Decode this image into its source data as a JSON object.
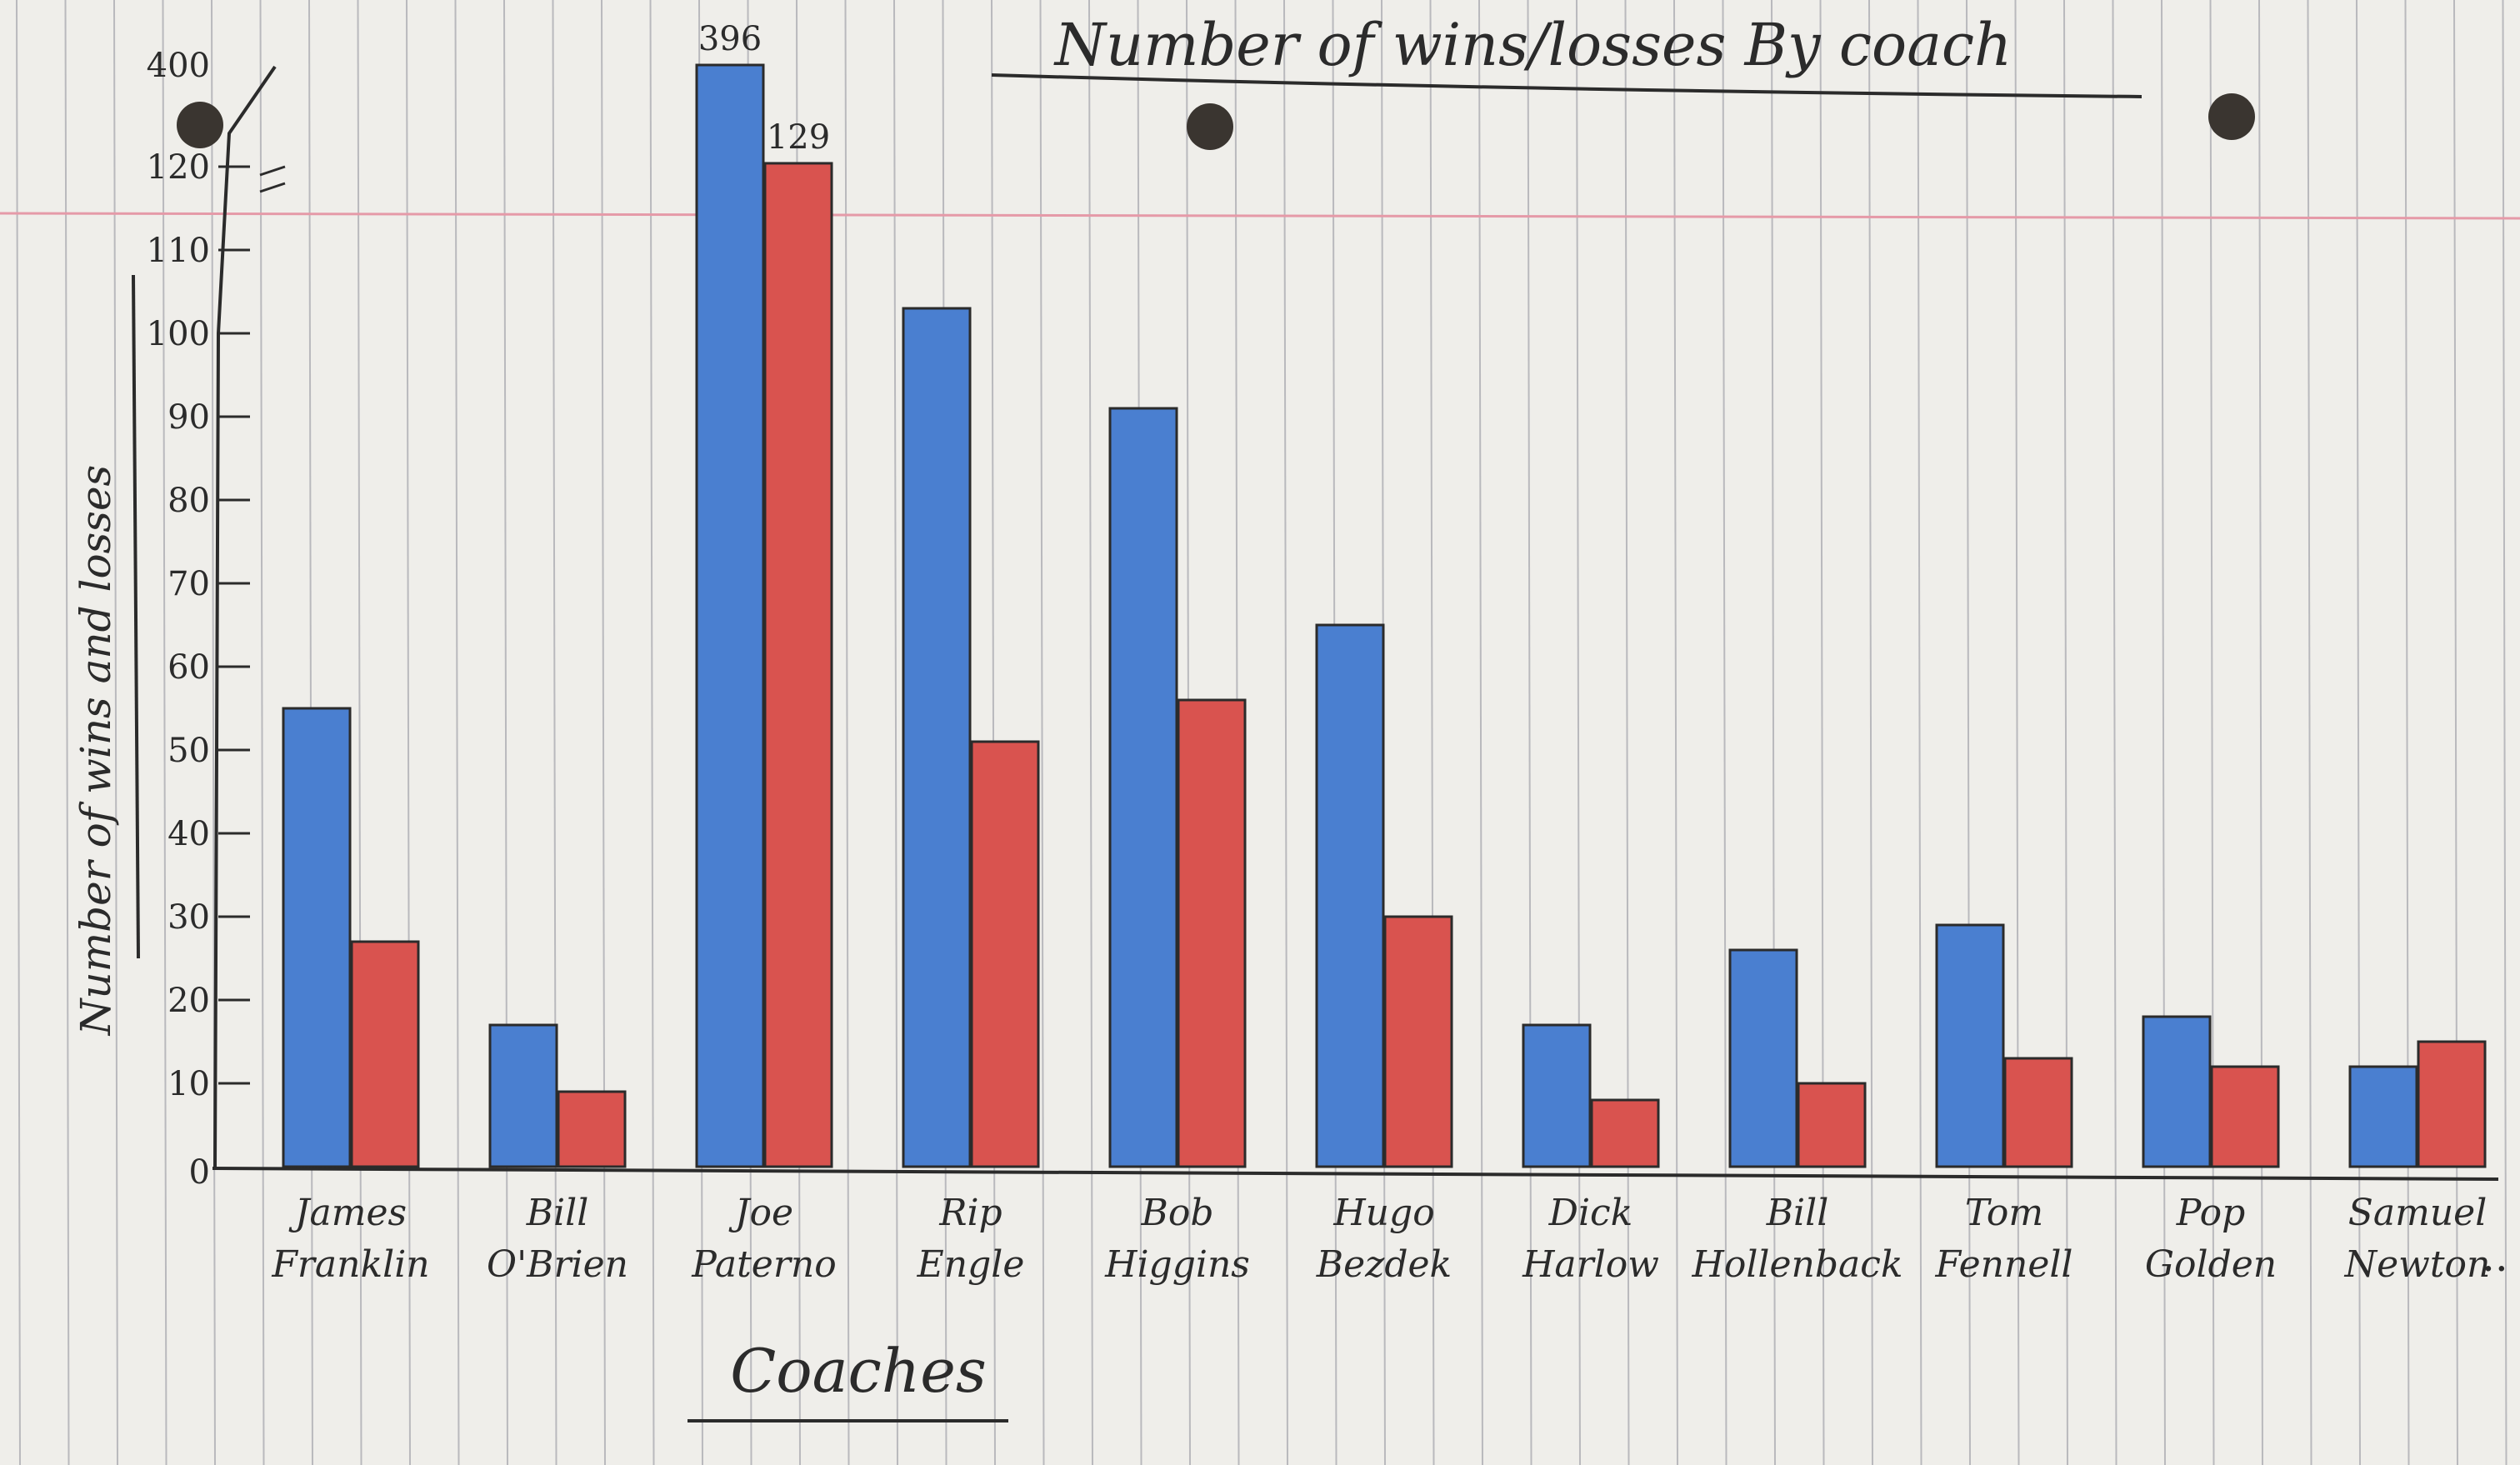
{
  "chart_data": {
    "type": "bar",
    "title": "Number of wins/losses By coach",
    "xlabel": "Coaches",
    "ylabel": "Number of wins and losses",
    "categories": [
      "James Franklin",
      "Bill O'Brien",
      "Joe Paterno",
      "Rip Engle",
      "Bob Higgins",
      "Hugo Bezdek",
      "Dick Harlow",
      "Bill Hollenback",
      "Tom Fennell",
      "Pop Golden",
      "Samuel Newton"
    ],
    "category_lines": [
      [
        "James",
        "Franklin"
      ],
      [
        "Bill",
        "O'Brien"
      ],
      [
        "Joe",
        "Paterno"
      ],
      [
        "Rip",
        "Engle"
      ],
      [
        "Bob",
        "Higgins"
      ],
      [
        "Hugo",
        "Bezdek"
      ],
      [
        "Dick",
        "Harlow"
      ],
      [
        "Bill",
        "Hollenback"
      ],
      [
        "Tom",
        "Fennell"
      ],
      [
        "Pop",
        "Golden"
      ],
      [
        "Samuel",
        "Newton"
      ]
    ],
    "series": [
      {
        "values": [
          55,
          17,
          396,
          103,
          91,
          65,
          17,
          26,
          29,
          18,
          12
        ],
        "color": "#4a7fd0"
      },
      {
        "values": [
          27,
          9,
          129,
          51,
          56,
          30,
          8,
          10,
          13,
          12,
          15
        ],
        "color": "#d9534f"
      }
    ],
    "bar_annotations": [
      {
        "series": 0,
        "category": 2,
        "text": "396"
      },
      {
        "series": 1,
        "category": 2,
        "text": "129"
      }
    ],
    "y_ticks": [
      0,
      10,
      20,
      30,
      40,
      50,
      60,
      70,
      80,
      90,
      100,
      110,
      120,
      400
    ],
    "y_axis_break": "between 120 and 400",
    "trailing_mark": "..",
    "ylim": [
      0,
      400
    ],
    "grid": false,
    "legend": "none"
  }
}
